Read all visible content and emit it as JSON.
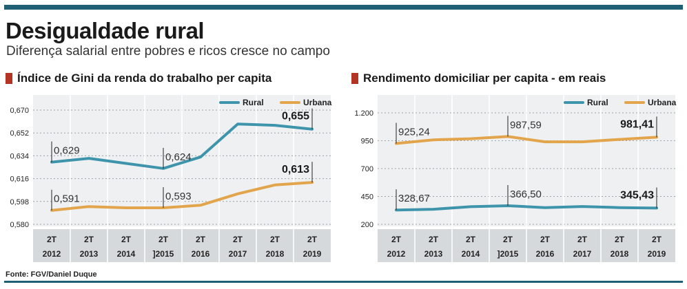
{
  "header": {
    "title": "Desigualdade rural",
    "subtitle": "Diferença salarial entre pobres e ricos cresce no campo"
  },
  "colors": {
    "rural": "#3e95ab",
    "urbana": "#e3a54b",
    "accent_bar": "#b33425",
    "brand": "#1f5f74"
  },
  "source": "Fonte: FGV/Daniel Duque",
  "chart_data": [
    {
      "type": "line",
      "title": "Índice de Gini da renda do trabalho per capita",
      "categories": [
        [
          "2T",
          "2012"
        ],
        [
          "2T",
          "2013"
        ],
        [
          "2T",
          "2014"
        ],
        [
          "2T",
          "]2015"
        ],
        [
          "2T",
          "2016"
        ],
        [
          "2T",
          "2017"
        ],
        [
          "2T",
          "2018"
        ],
        [
          "2T",
          "2019"
        ]
      ],
      "yticks": [
        "0,670",
        "0,652",
        "0,634",
        "0,616",
        "0,598",
        "0,580"
      ],
      "ylim": [
        0.58,
        0.67
      ],
      "legend": {
        "placement": "top-right",
        "entries": [
          "Rural",
          "Urbana"
        ]
      },
      "series": [
        {
          "name": "Rural",
          "values": [
            0.629,
            0.632,
            0.628,
            0.624,
            0.633,
            0.659,
            0.658,
            0.655
          ]
        },
        {
          "name": "Urbana",
          "values": [
            0.591,
            0.594,
            0.593,
            0.593,
            0.595,
            0.604,
            0.611,
            0.613
          ]
        }
      ],
      "annotations": [
        {
          "series": 0,
          "index": 0,
          "text": "0,629",
          "bold": false
        },
        {
          "series": 0,
          "index": 3,
          "text": "0,624",
          "bold": false
        },
        {
          "series": 0,
          "index": 7,
          "text": "0,655",
          "bold": true
        },
        {
          "series": 1,
          "index": 0,
          "text": "0,591",
          "bold": false
        },
        {
          "series": 1,
          "index": 3,
          "text": "0,593",
          "bold": false
        },
        {
          "series": 1,
          "index": 7,
          "text": "0,613",
          "bold": true
        }
      ]
    },
    {
      "type": "line",
      "title": "Rendimento domiciliar per capita - em reais",
      "categories": [
        [
          "2T",
          "2012"
        ],
        [
          "2T",
          "2013"
        ],
        [
          "2T",
          "2014"
        ],
        [
          "2T",
          "]2015"
        ],
        [
          "2T",
          "2016"
        ],
        [
          "2T",
          "2017"
        ],
        [
          "2T",
          "2018"
        ],
        [
          "2T",
          "2019"
        ]
      ],
      "yticks": [
        "1.200",
        "950",
        "700",
        "450",
        "200"
      ],
      "ylim": [
        200,
        1200
      ],
      "legend": {
        "placement": "top-right",
        "entries": [
          "Rural",
          "Urbana"
        ]
      },
      "series": [
        {
          "name": "Rural",
          "values": [
            328.67,
            335,
            358,
            366.5,
            350,
            360,
            350,
            345.43
          ]
        },
        {
          "name": "Urbana",
          "values": [
            925.24,
            958,
            968,
            987.59,
            940,
            940,
            962,
            981.41
          ]
        }
      ],
      "annotations": [
        {
          "series": 0,
          "index": 0,
          "text": "328,67",
          "bold": false
        },
        {
          "series": 0,
          "index": 3,
          "text": "366,50",
          "bold": false
        },
        {
          "series": 0,
          "index": 7,
          "text": "345,43",
          "bold": true
        },
        {
          "series": 1,
          "index": 0,
          "text": "925,24",
          "bold": false
        },
        {
          "series": 1,
          "index": 3,
          "text": "987,59",
          "bold": false
        },
        {
          "series": 1,
          "index": 7,
          "text": "981,41",
          "bold": true
        }
      ]
    }
  ]
}
